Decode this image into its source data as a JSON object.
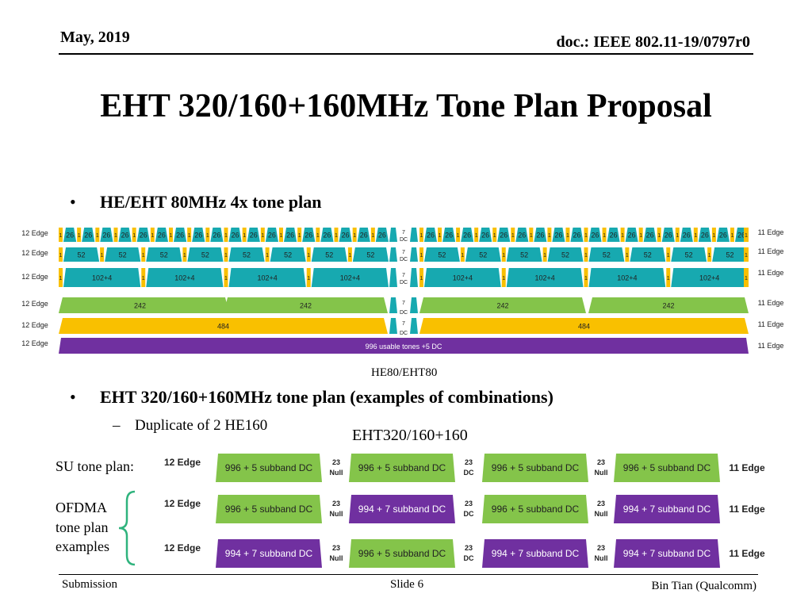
{
  "header": {
    "date": "May, 2019",
    "doc_id": "doc.: IEEE 802.11-19/0797r0"
  },
  "title": "EHT 320/160+160MHz Tone Plan Proposal",
  "bullets": [
    {
      "marker": "•",
      "text": "HE/EHT 80MHz 4x tone plan"
    },
    {
      "marker": "•",
      "text": "EHT 320/160+160MHz tone plan (examples of combinations)"
    }
  ],
  "sub_bullet": {
    "marker": "–",
    "text": "Duplicate of 2 HE160"
  },
  "he80_diagram": {
    "caption": "HE80/EHT80",
    "left_edge_labels": [
      "12 Edge",
      "12 Edge",
      "12 Edge",
      "12 Edge",
      "12 Edge",
      "12 Edge"
    ],
    "right_edge_label": "11 Edge",
    "dc_label": "DC",
    "dc_seven": "7",
    "ru26": "26",
    "ru52": "52",
    "ru106": "102+4",
    "ru242": "242",
    "ru484": "484",
    "ru996": "996 usable tones +5 DC",
    "small_one": "1",
    "small_two": "2",
    "small_13": "13",
    "colors": {
      "teal": "#17a9b0",
      "yellow": "#f9c000",
      "green": "#84c44a",
      "purple": "#7030a0"
    }
  },
  "eht_diagram": {
    "caption": "EHT320/160+160",
    "row_labels": {
      "su": "SU tone plan:",
      "ofdma_1": "OFDMA",
      "ofdma_2": "tone plan",
      "ofdma_3": "examples"
    },
    "edge_left": "12 Edge",
    "edge_right": "11 Edge",
    "gaps": [
      {
        "num": "23",
        "txt": "Null"
      },
      {
        "num": "23",
        "txt": "DC"
      },
      {
        "num": "23",
        "txt": "Null"
      }
    ],
    "rows": [
      [
        "996 + 5 subband DC",
        "996 + 5 subband DC",
        "996 + 5 subband DC",
        "996 + 5 subband DC"
      ],
      [
        "996 + 5 subband DC",
        "994 + 7 subband DC",
        "996 + 5 subband DC",
        "994 + 7 subband DC"
      ],
      [
        "994 + 7 subband DC",
        "996 + 5 subband DC",
        "994 + 7 subband DC",
        "994 + 7 subband DC"
      ]
    ],
    "row_types": [
      [
        "green",
        "green",
        "green",
        "green"
      ],
      [
        "green",
        "purple",
        "green",
        "purple"
      ],
      [
        "purple",
        "green",
        "purple",
        "purple"
      ]
    ],
    "colors": {
      "green": "#84c44a",
      "purple": "#7030a0"
    }
  },
  "footer": {
    "left": "Submission",
    "center": "Slide 6",
    "right": "Bin Tian (Qualcomm)"
  }
}
